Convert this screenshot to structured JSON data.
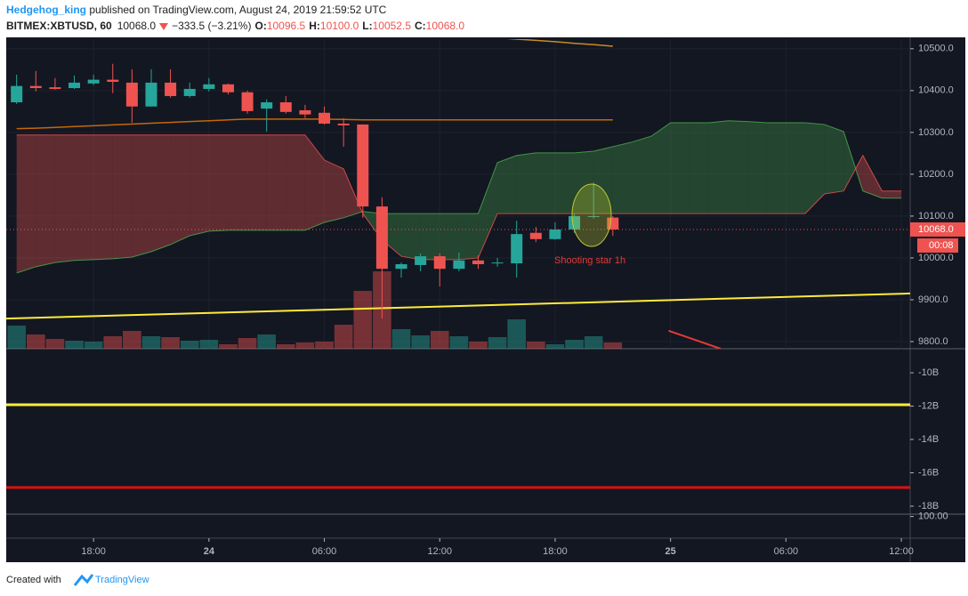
{
  "header": {
    "author": "Hedgehog_king",
    "published": " published on TradingView.com, August 24, 2019 21:59:52 UTC",
    "symbol": "BITMEX:XBTUSD, 60",
    "price": "10068.0",
    "change": "−333.5 (−3.21%)",
    "ohlc": [
      {
        "key": "O:",
        "value": "10096.5"
      },
      {
        "key": "H:",
        "value": "10100.0"
      },
      {
        "key": "L:",
        "value": "10052.5"
      },
      {
        "key": "C:",
        "value": "10068.0"
      }
    ]
  },
  "footer": {
    "text": "Created with",
    "brand": "TradingView"
  },
  "chart_data": [
    {
      "type": "candlestick",
      "categories": [
        null,
        null,
        null,
        null,
        null,
        null,
        null,
        null,
        null,
        null,
        null,
        null,
        null,
        null,
        null,
        null,
        null,
        null,
        null,
        null,
        null,
        null,
        null,
        null,
        null,
        null,
        null,
        null,
        null,
        null,
        null,
        null,
        null,
        null,
        null,
        null,
        null,
        null,
        null,
        null,
        null,
        null,
        null,
        null,
        null,
        null,
        null
      ],
      "open": [
        10372,
        10411,
        10408,
        10406,
        10417,
        10426,
        10419,
        10362,
        10419,
        10387,
        10404,
        10415,
        10396,
        10357,
        10372,
        10353,
        10347,
        10321,
        10319,
        10123,
        9974,
        9983,
        10004,
        9974,
        9994,
        9987,
        9987,
        10060,
        10045,
        10068,
        10098,
        10096.5,
        null,
        null,
        null,
        null,
        null,
        null,
        null,
        null,
        null,
        null,
        null,
        null,
        null,
        null,
        null
      ],
      "high": [
        10438,
        10447,
        10430,
        10436,
        10438,
        10464,
        10451,
        10451,
        10451,
        10419,
        10430,
        10417,
        10400,
        10379,
        10387,
        10366,
        10362,
        10334,
        10319,
        10145,
        9989,
        10011,
        10011,
        10013,
        10006,
        10000,
        10089,
        10074,
        10085,
        10106,
        10181,
        10100,
        null,
        null,
        null,
        null,
        null,
        null,
        null,
        null,
        null,
        null,
        null,
        null,
        null,
        null,
        null
      ],
      "low": [
        10368,
        10398,
        10402,
        10404,
        10413,
        10394,
        10323,
        10362,
        10383,
        10383,
        10398,
        10391,
        10345,
        10302,
        10345,
        10334,
        10319,
        10266,
        10096,
        9855,
        9953,
        9968,
        9932,
        9968,
        9974,
        9979,
        9953,
        10038,
        10043,
        10060,
        10094,
        10052.5,
        null,
        null,
        null,
        null,
        null,
        null,
        null,
        null,
        null,
        null,
        null,
        null,
        null,
        null,
        null
      ],
      "close": [
        10411,
        10406,
        10404,
        10419,
        10426,
        10421,
        10362,
        10419,
        10387,
        10404,
        10415,
        10396,
        10351,
        10372,
        10349,
        10343,
        10321,
        10317,
        10123,
        9974,
        9985,
        10004,
        9974,
        9994,
        9985,
        9989,
        10057,
        10045,
        10068,
        10100,
        10100,
        10068,
        null,
        null,
        null,
        null,
        null,
        null,
        null,
        null,
        null,
        null,
        null,
        null,
        null,
        null,
        null
      ],
      "volume": [
        26,
        16,
        11,
        9,
        8,
        14,
        20,
        14,
        13,
        9,
        10,
        5,
        12,
        16,
        5,
        7,
        8,
        27,
        65,
        87,
        22,
        15,
        20,
        14,
        8,
        13,
        33,
        8,
        5,
        10,
        14,
        7,
        null,
        null,
        null,
        null,
        null,
        null,
        null,
        null,
        null,
        null,
        null,
        null,
        null,
        null,
        null
      ],
      "up_color": "#26a69a",
      "down_color": "#ef5350",
      "span_a": {
        "color": "#4caf50",
        "values": [
          9964,
          9979,
          9989,
          9994,
          9996,
          9998,
          10002,
          10015,
          10032,
          10053,
          10064,
          10066,
          10066,
          10066,
          10066,
          10066,
          10085,
          10096,
          10111,
          10106,
          10106,
          10106,
          10106,
          10106,
          10106,
          10228,
          10245,
          10251,
          10251,
          10251,
          10255,
          10266,
          10277,
          10291,
          10323,
          10323,
          10323,
          10328,
          10326,
          10323,
          10323,
          10323,
          10319,
          10302,
          10160,
          10143,
          10143
        ]
      },
      "span_b": {
        "color": "#ef5350",
        "values": [
          10294,
          10294,
          10294,
          10294,
          10294,
          10294,
          10294,
          10294,
          10294,
          10294,
          10294,
          10294,
          10294,
          10294,
          10294,
          10294,
          10234,
          10213,
          10106,
          10043,
          10004,
          9996,
          9996,
          9996,
          10000,
          10106,
          10106,
          10106,
          10106,
          10106,
          10106,
          10106,
          10106,
          10106,
          10106,
          10106,
          10106,
          10106,
          10106,
          10106,
          10106,
          10106,
          10153,
          10160,
          10245,
          10160,
          10160
        ]
      },
      "lines": [
        {
          "color": "#f57c00",
          "values": [
            10309,
            10310,
            10312,
            10314,
            10316,
            10318,
            10320,
            10322,
            10324,
            10326,
            10328,
            10330,
            10332,
            10332,
            10332,
            10332,
            10332,
            10331,
            10330,
            10330,
            10330,
            10330,
            10330,
            10330,
            10330,
            10330,
            10330,
            10330,
            10330,
            10330,
            10330,
            10330,
            null,
            null,
            null,
            null,
            null,
            null,
            null,
            null,
            null,
            null,
            null,
            null,
            null,
            null,
            null
          ]
        },
        {
          "color": "#f9a825",
          "values": [
            null,
            null,
            null,
            null,
            null,
            null,
            null,
            null,
            null,
            null,
            null,
            null,
            null,
            null,
            null,
            null,
            null,
            null,
            null,
            null,
            null,
            null,
            null,
            null,
            10528,
            10526,
            10523,
            10520,
            10517,
            10513,
            10510,
            10506,
            null,
            null,
            null,
            null,
            null,
            null,
            null,
            null,
            null,
            null,
            null,
            null,
            null,
            null,
            null
          ]
        }
      ],
      "trendlines": [
        {
          "color": "#ffeb3b",
          "x": [
            -0.54,
            46.46
          ],
          "values": [
            9855,
            9915
          ]
        },
        {
          "color": "#e53935",
          "x": [
            33.9,
            36.6
          ],
          "values": [
            9826,
            9783
          ]
        }
      ],
      "last": {
        "value": 10068,
        "label": "10068.0",
        "countdown": "00:08"
      },
      "annotation": "Shooting star 1h",
      "xlim": [
        -0.54,
        46.46
      ],
      "ylim": [
        9783,
        10523
      ],
      "xticks": [
        {
          "value": 4,
          "label": "18:00"
        },
        {
          "value": 10,
          "label": "24"
        },
        {
          "value": 16,
          "label": "06:00"
        },
        {
          "value": 22,
          "label": "12:00"
        },
        {
          "value": 28,
          "label": "18:00"
        },
        {
          "value": 34,
          "label": "25"
        },
        {
          "value": 40,
          "label": "06:00"
        },
        {
          "value": 46,
          "label": "12:00"
        }
      ],
      "yticks": [
        {
          "value": 9800,
          "label": "9800.0"
        },
        {
          "value": 9900,
          "label": "9900.0"
        },
        {
          "value": 10000,
          "label": "10000.0"
        },
        {
          "value": 10100,
          "label": "10100.0"
        },
        {
          "value": 10200,
          "label": "10200.0"
        },
        {
          "value": 10300,
          "label": "10300.0"
        },
        {
          "value": 10400,
          "label": "10400.0"
        },
        {
          "value": 10500,
          "label": "10500.0"
        }
      ],
      "grid": true
    },
    {
      "type": "line",
      "ylim": [
        -18480000000,
        -8610000000
      ],
      "yticks": [
        {
          "value": -10000000000,
          "label": "-10B"
        },
        {
          "value": -12000000000,
          "label": "-12B"
        },
        {
          "value": -14000000000,
          "label": "-14B"
        },
        {
          "value": -16000000000,
          "label": "-16B"
        },
        {
          "value": -18000000000,
          "label": "-18B"
        }
      ],
      "series": [
        {
          "color": "#ffeb3b",
          "values": [
            -11920000000,
            -11920000000
          ]
        },
        {
          "color": "#e01010",
          "values": [
            -16880000000,
            -16880000000
          ]
        }
      ]
    },
    {
      "type": "line",
      "ylim": [
        94,
        100.4
      ],
      "yticks": [
        {
          "value": 100,
          "label": "100.00"
        }
      ],
      "series": []
    }
  ]
}
